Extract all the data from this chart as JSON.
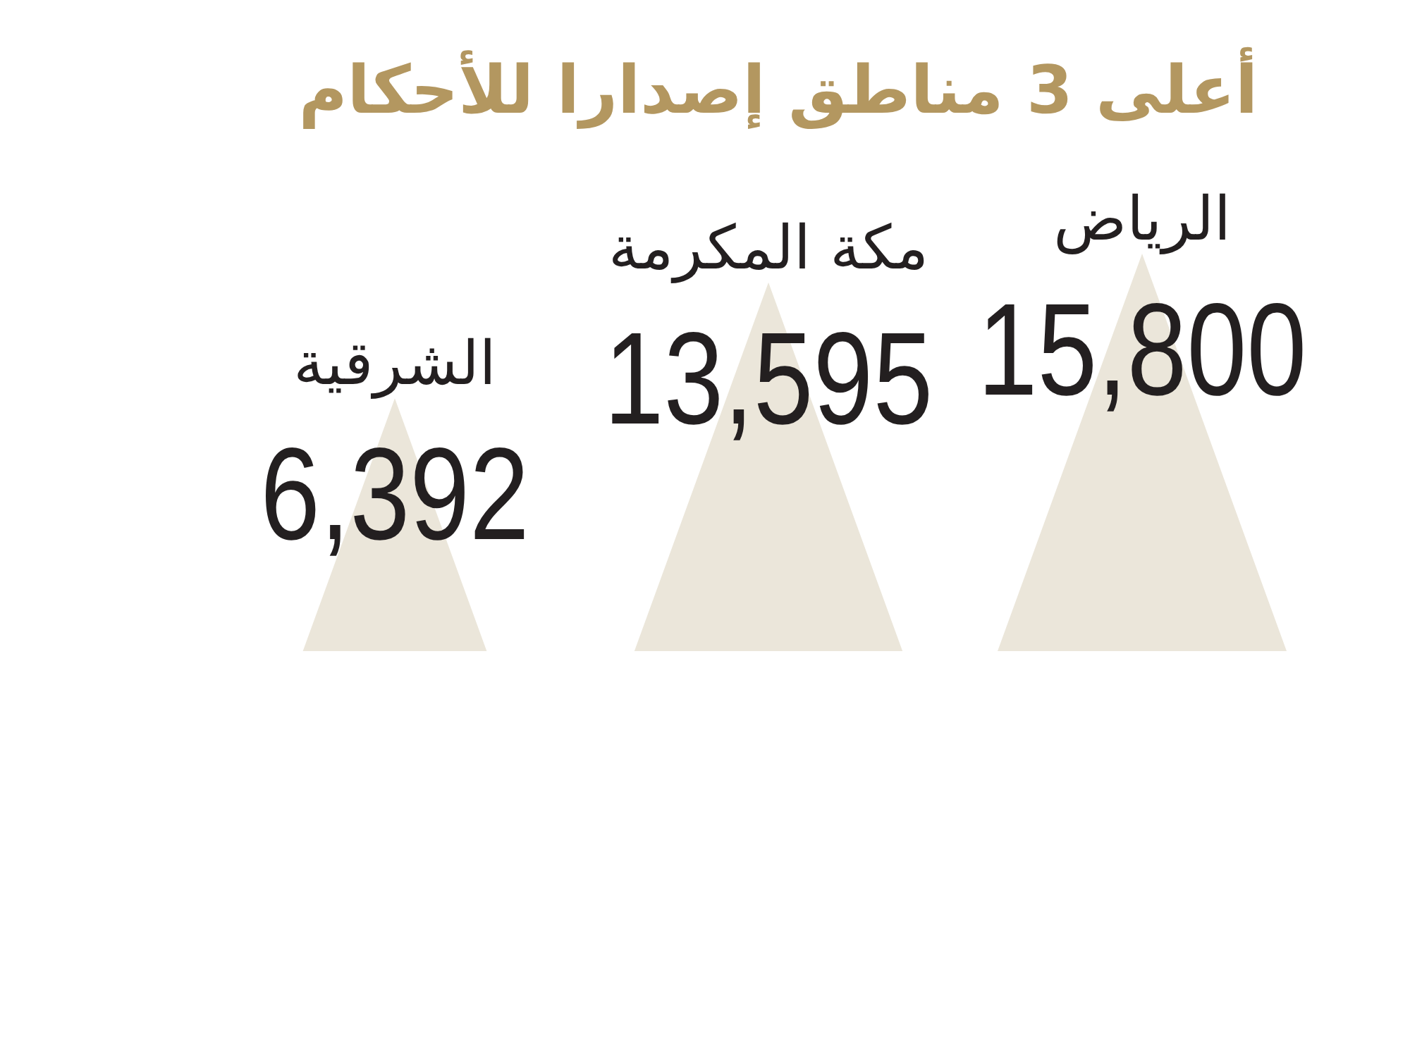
{
  "chart_data": {
    "type": "other",
    "title": "أعلى 3 مناطق إصدارا للأحكام",
    "categories": [
      "الشرقية",
      "مكة المكرمة",
      "الرياض"
    ],
    "values": [
      6392,
      13595,
      15800
    ],
    "value_labels": [
      "6,392",
      "13,595",
      "15,800"
    ],
    "color": "#ebe6da"
  }
}
